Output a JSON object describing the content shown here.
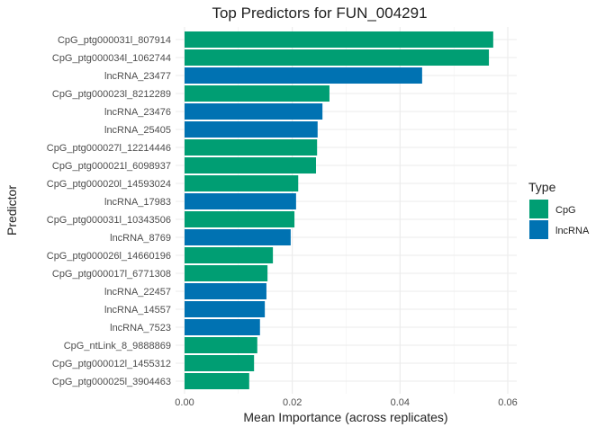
{
  "chart_data": {
    "type": "bar",
    "orientation": "horizontal",
    "title": "Top Predictors for FUN_004291",
    "xlabel": "Mean Importance (across replicates)",
    "ylabel": "Predictor",
    "xlim": [
      0,
      0.06
    ],
    "xticks": [
      "0.00",
      "0.02",
      "0.04",
      "0.06"
    ],
    "xtick_values": [
      0,
      0.02,
      0.04,
      0.06
    ],
    "grid": true,
    "legend": {
      "title": "Type",
      "placement": "right",
      "entries": [
        {
          "label": "CpG",
          "color": "#009E73"
        },
        {
          "label": "lncRNA",
          "color": "#0072B2"
        }
      ]
    },
    "categories": [
      "CpG_ptg000031l_807914",
      "CpG_ptg000034l_1062744",
      "lncRNA_23477",
      "CpG_ptg000023l_8212289",
      "lncRNA_23476",
      "lncRNA_25405",
      "CpG_ptg000027l_12214446",
      "CpG_ptg000021l_6098937",
      "CpG_ptg000020l_14593024",
      "lncRNA_17983",
      "CpG_ptg000031l_10343506",
      "lncRNA_8769",
      "CpG_ptg000026l_14660196",
      "CpG_ptg000017l_6771308",
      "lncRNA_22457",
      "lncRNA_14557",
      "lncRNA_7523",
      "CpG_ntLink_8_9888869",
      "CpG_ptg000012l_1455312",
      "CpG_ptg000025l_3904463"
    ],
    "types": [
      "CpG",
      "CpG",
      "lncRNA",
      "CpG",
      "lncRNA",
      "lncRNA",
      "CpG",
      "CpG",
      "CpG",
      "lncRNA",
      "CpG",
      "lncRNA",
      "CpG",
      "CpG",
      "lncRNA",
      "lncRNA",
      "lncRNA",
      "CpG",
      "CpG",
      "CpG"
    ],
    "values": [
      0.0573,
      0.0565,
      0.0441,
      0.0269,
      0.0256,
      0.0247,
      0.0246,
      0.0244,
      0.0211,
      0.0207,
      0.0204,
      0.0197,
      0.0164,
      0.0154,
      0.0152,
      0.0149,
      0.014,
      0.0135,
      0.0129,
      0.012
    ]
  }
}
